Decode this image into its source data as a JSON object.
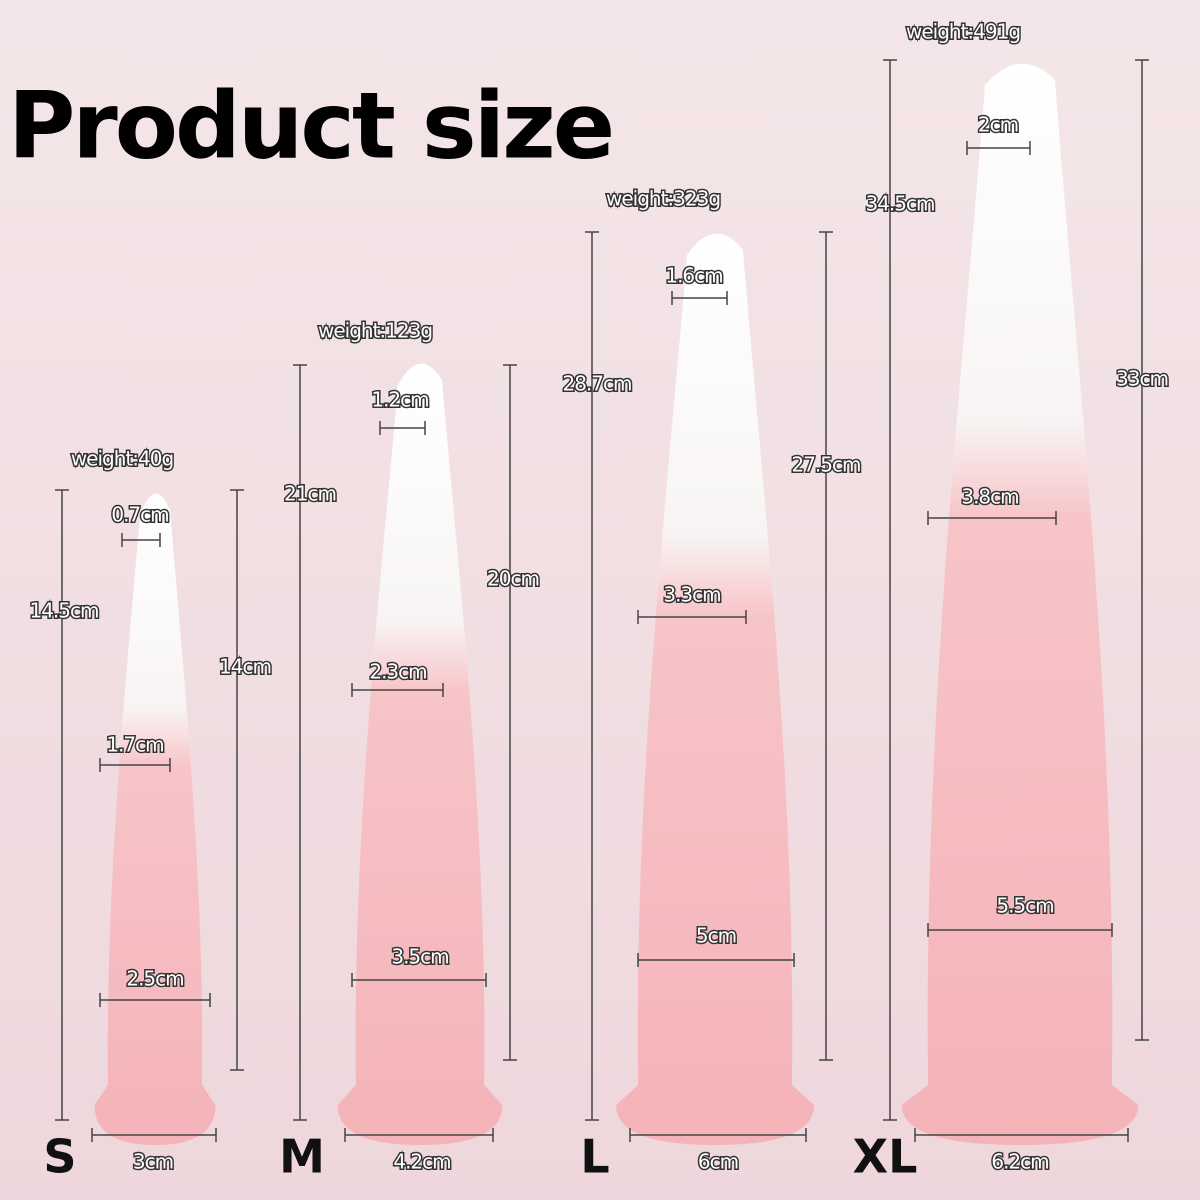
{
  "header": {
    "title": "Product size"
  },
  "sizes": [
    {
      "name": "S",
      "weight": "weight:40g",
      "total_length": "14.5cm",
      "usable_length": "14cm",
      "tip_width": "0.7cm",
      "upper_width": "1.7cm",
      "lower_width": "2.5cm",
      "base_width": "3cm"
    },
    {
      "name": "M",
      "weight": "weight:123g",
      "total_length": "21cm",
      "usable_length": "20cm",
      "tip_width": "1.2cm",
      "upper_width": "2.3cm",
      "lower_width": "3.5cm",
      "base_width": "4.2cm"
    },
    {
      "name": "L",
      "weight": "weight:323g",
      "total_length": "28.7cm",
      "usable_length": "27.5cm",
      "tip_width": "1.6cm",
      "upper_width": "3.3cm",
      "lower_width": "5cm",
      "base_width": "6cm"
    },
    {
      "name": "XL",
      "weight": "weight:491g",
      "total_length": "34.5cm",
      "usable_length": "33cm",
      "tip_width": "2cm",
      "upper_width": "3.8cm",
      "lower_width": "5.5cm",
      "base_width": "6.2cm"
    }
  ]
}
